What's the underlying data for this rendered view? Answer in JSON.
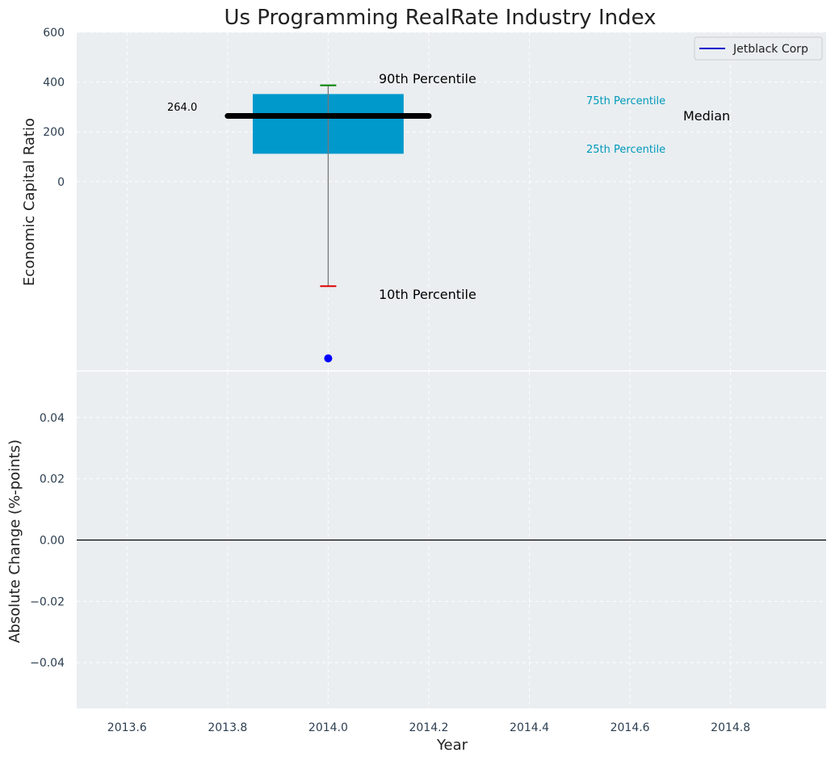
{
  "chart_data": [
    {
      "type": "box",
      "title": "Us Programming RealRate Industry Index",
      "ylabel": "Economic Capital Ratio",
      "ylim": [
        -760,
        600
      ],
      "yticks": [
        0,
        200,
        400,
        600
      ],
      "ytick_labels": [
        "0",
        "200",
        "400",
        "600"
      ],
      "grid": true,
      "legend_position": "top-right",
      "legend": [
        {
          "label": "Jetblack Corp",
          "color": "#0000cc"
        }
      ],
      "box": {
        "x": 2014.0,
        "p10": -420,
        "p25": 112,
        "median": 264,
        "p75": 352,
        "p90": 387,
        "box_x_range": [
          2013.85,
          2014.15
        ],
        "median_x_range": [
          2013.8,
          2014.2
        ],
        "color": "#0099cc"
      },
      "company_point": {
        "x": 2014.0,
        "y": -710,
        "color": "#0000ff"
      },
      "median_value_label": "264.0",
      "annotations": {
        "p90": "90th Percentile",
        "p10": "10th Percentile",
        "p75": "75th Percentile",
        "p25": "25th Percentile",
        "median": "Median"
      }
    },
    {
      "type": "line",
      "ylabel": "Absolute Change (%-points)",
      "xlabel": "Year",
      "xlim": [
        2013.5,
        2014.99
      ],
      "ylim": [
        -0.055,
        0.055
      ],
      "xticks": [
        2013.6,
        2013.8,
        2014.0,
        2014.2,
        2014.4,
        2014.6,
        2014.8
      ],
      "xtick_labels": [
        "2013.6",
        "2013.8",
        "2014.0",
        "2014.2",
        "2014.4",
        "2014.6",
        "2014.8"
      ],
      "yticks": [
        0.04,
        0.02,
        0.0,
        -0.02,
        -0.04
      ],
      "ytick_labels": [
        "0.04",
        "0.02",
        "0.00",
        "−0.02",
        "−0.04"
      ],
      "zero_line": 0.0,
      "grid": true
    }
  ]
}
